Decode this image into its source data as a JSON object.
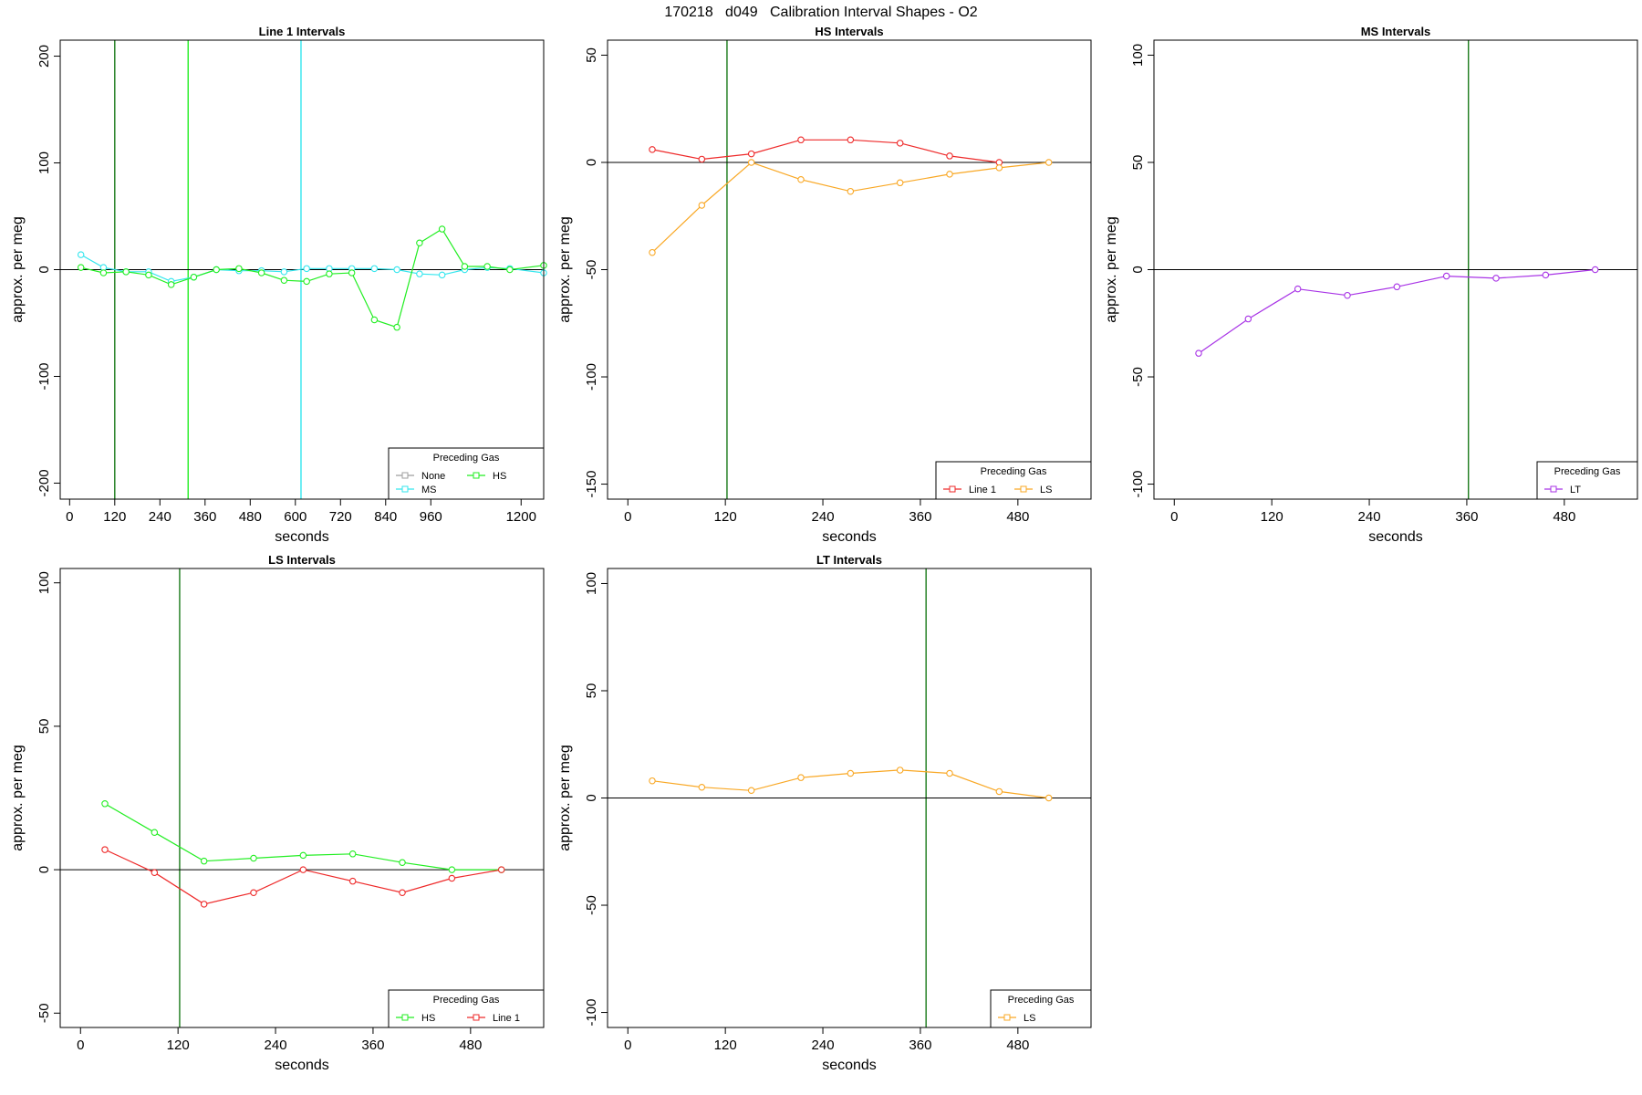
{
  "page": {
    "title": "170218   d049   Calibration Interval Shapes - O2"
  },
  "colors": {
    "None": "#9e9e9e",
    "HS": "#22ee22",
    "MS": "#33e6ee",
    "Line 1": "#ee2a2a",
    "LS": "#f9a825",
    "LT": "#a833e6",
    "vline_dark": "#1a7a1a",
    "zero_line": "#000000"
  },
  "chart_data": [
    {
      "type": "line",
      "title": "Line 1 Intervals",
      "xlabel": "seconds",
      "ylabel": "approx. per meg",
      "xlim": [
        -25,
        1260
      ],
      "ylim": [
        -215,
        215
      ],
      "xticks": [
        0,
        120,
        240,
        360,
        480,
        600,
        720,
        840,
        960,
        1200
      ],
      "xtick_labels": [
        "0",
        "120",
        "240",
        "360",
        "480",
        "600",
        "720",
        "840",
        "960",
        "1200"
      ],
      "yticks": [
        -200,
        -100,
        0,
        100,
        200
      ],
      "ytick_labels": [
        "-200",
        "-100",
        "0",
        "100",
        "200"
      ],
      "zero_line": true,
      "vlines": [
        {
          "x": 120,
          "color": "#1a7a1a"
        },
        {
          "x": 315,
          "color": "#22ee22"
        },
        {
          "x": 615,
          "color": "#33e6ee"
        }
      ],
      "legend": {
        "title": "Preceding Gas",
        "position": "bottom-right",
        "entries": [
          "None",
          "HS",
          "MS"
        ],
        "layout": [
          [
            "None",
            "HS"
          ],
          [
            "MS"
          ]
        ]
      },
      "series": [
        {
          "name": "MS",
          "x": [
            30,
            90,
            150,
            210,
            270,
            330,
            390,
            450,
            510,
            570,
            630,
            690,
            750,
            810,
            870,
            930,
            990,
            1050,
            1110,
            1170,
            1260
          ],
          "y": [
            14,
            2,
            -2,
            -2,
            -11,
            -7,
            0,
            -1,
            -1,
            -2,
            1,
            1,
            1,
            1,
            0,
            -4,
            -5,
            0,
            2,
            1,
            -3
          ]
        },
        {
          "name": "HS",
          "x": [
            30,
            90,
            150,
            210,
            270,
            330,
            390,
            450,
            510,
            570,
            630,
            690,
            750,
            810,
            870,
            930,
            990,
            1050,
            1110,
            1170,
            1260
          ],
          "y": [
            2,
            -3,
            -2,
            -5,
            -14,
            -7,
            0,
            1,
            -3,
            -10,
            -11,
            -4,
            -3,
            -47,
            -54,
            25,
            38,
            3,
            3,
            0,
            4
          ]
        }
      ]
    },
    {
      "type": "line",
      "title": "HS Intervals",
      "xlabel": "seconds",
      "ylabel": "approx. per meg",
      "xlim": [
        -25,
        570
      ],
      "ylim": [
        -157,
        57
      ],
      "xticks": [
        0,
        120,
        240,
        360,
        480
      ],
      "xtick_labels": [
        "0",
        "120",
        "240",
        "360",
        "480"
      ],
      "yticks": [
        -150,
        -100,
        -50,
        0,
        50
      ],
      "ytick_labels": [
        "-150",
        "-100",
        "-50",
        "0",
        "50"
      ],
      "zero_line": true,
      "vlines": [
        {
          "x": 122,
          "color": "#1a7a1a"
        }
      ],
      "legend": {
        "title": "Preceding Gas",
        "position": "bottom-right",
        "entries": [
          "Line 1",
          "LS"
        ],
        "layout": [
          [
            "Line 1",
            "LS"
          ]
        ]
      },
      "series": [
        {
          "name": "Line 1",
          "x": [
            30,
            91,
            152,
            213,
            274,
            335,
            396,
            457
          ],
          "y": [
            6,
            1.5,
            4,
            10.5,
            10.5,
            9,
            3,
            0
          ]
        },
        {
          "name": "LS",
          "x": [
            30,
            91,
            152,
            213,
            274,
            335,
            396,
            457,
            518
          ],
          "y": [
            -42,
            -20,
            0,
            -8,
            -13.5,
            -9.5,
            -5.5,
            -2.5,
            0
          ]
        }
      ]
    },
    {
      "type": "line",
      "title": "MS Intervals",
      "xlabel": "seconds",
      "ylabel": "approx. per meg",
      "xlim": [
        -25,
        570
      ],
      "ylim": [
        -107,
        107
      ],
      "xticks": [
        0,
        120,
        240,
        360,
        480
      ],
      "xtick_labels": [
        "0",
        "120",
        "240",
        "360",
        "480"
      ],
      "yticks": [
        -100,
        -50,
        0,
        50,
        100
      ],
      "ytick_labels": [
        "-100",
        "-50",
        "0",
        "50",
        "100"
      ],
      "zero_line": true,
      "vlines": [
        {
          "x": 362,
          "color": "#1a7a1a"
        }
      ],
      "legend": {
        "title": "Preceding Gas",
        "position": "bottom-right",
        "entries": [
          "LT"
        ],
        "layout": [
          [
            "LT"
          ]
        ]
      },
      "series": [
        {
          "name": "LT",
          "x": [
            30,
            91,
            152,
            213,
            274,
            335,
            396,
            457,
            518
          ],
          "y": [
            -39,
            -23,
            -9,
            -12,
            -8,
            -3,
            -4,
            -2.5,
            0
          ]
        }
      ]
    },
    {
      "type": "line",
      "title": "LS Intervals",
      "xlabel": "seconds",
      "ylabel": "approx. per meg",
      "xlim": [
        -25,
        570
      ],
      "ylim": [
        -55,
        105
      ],
      "xticks": [
        0,
        120,
        240,
        360,
        480
      ],
      "xtick_labels": [
        "0",
        "120",
        "240",
        "360",
        "480"
      ],
      "yticks": [
        -50,
        0,
        50,
        100
      ],
      "ytick_labels": [
        "-50",
        "0",
        "50",
        "100"
      ],
      "zero_line": true,
      "vlines": [
        {
          "x": 122,
          "color": "#1a7a1a"
        }
      ],
      "legend": {
        "title": "Preceding Gas",
        "position": "bottom-right",
        "entries": [
          "HS",
          "Line 1"
        ],
        "layout": [
          [
            "HS",
            "Line 1"
          ]
        ]
      },
      "series": [
        {
          "name": "HS",
          "x": [
            30,
            91,
            152,
            213,
            274,
            335,
            396,
            457,
            518
          ],
          "y": [
            23,
            13,
            3,
            4,
            5,
            5.5,
            2.5,
            0,
            0
          ]
        },
        {
          "name": "Line 1",
          "x": [
            30,
            91,
            152,
            213,
            274,
            335,
            396,
            457,
            518
          ],
          "y": [
            7,
            -1,
            -12,
            -8,
            0,
            -4,
            -8,
            -3,
            0
          ]
        }
      ]
    },
    {
      "type": "line",
      "title": "LT Intervals",
      "xlabel": "seconds",
      "ylabel": "approx. per meg",
      "xlim": [
        -25,
        570
      ],
      "ylim": [
        -107,
        107
      ],
      "xticks": [
        0,
        120,
        240,
        360,
        480
      ],
      "xtick_labels": [
        "0",
        "120",
        "240",
        "360",
        "480"
      ],
      "yticks": [
        -100,
        -50,
        0,
        50,
        100
      ],
      "ytick_labels": [
        "-100",
        "-50",
        "0",
        "50",
        "100"
      ],
      "zero_line": true,
      "vlines": [
        {
          "x": 367,
          "color": "#1a7a1a"
        }
      ],
      "legend": {
        "title": "Preceding Gas",
        "position": "bottom-right",
        "entries": [
          "LS"
        ],
        "layout": [
          [
            "LS"
          ]
        ]
      },
      "series": [
        {
          "name": "LS",
          "x": [
            30,
            91,
            152,
            213,
            274,
            335,
            396,
            457,
            518
          ],
          "y": [
            8,
            5,
            3.5,
            9.5,
            11.5,
            13,
            11.5,
            3,
            0
          ]
        }
      ]
    }
  ]
}
